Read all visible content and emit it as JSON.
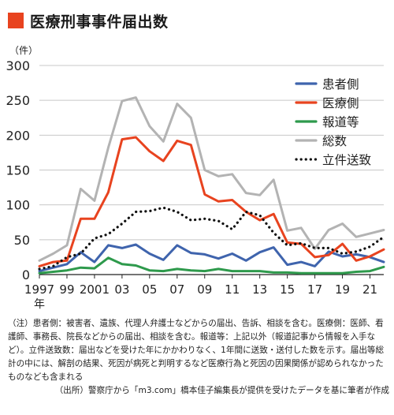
{
  "title": "医療刑事事件届出数",
  "chart_data": {
    "type": "line",
    "ylabel": "（件）",
    "ylim": [
      0,
      300
    ],
    "yticks": [
      0,
      50,
      100,
      150,
      200,
      250,
      300
    ],
    "xlim": [
      1997,
      2022
    ],
    "xticks": [
      {
        "x": 1997,
        "label": "1997"
      },
      {
        "x": 1999,
        "label": "99"
      },
      {
        "x": 2001,
        "label": "2001"
      },
      {
        "x": 2003,
        "label": "03"
      },
      {
        "x": 2005,
        "label": "05"
      },
      {
        "x": 2007,
        "label": "07"
      },
      {
        "x": 2009,
        "label": "09"
      },
      {
        "x": 2011,
        "label": "11"
      },
      {
        "x": 2013,
        "label": "13"
      },
      {
        "x": 2015,
        "label": "15"
      },
      {
        "x": 2017,
        "label": "17"
      },
      {
        "x": 2019,
        "label": "19"
      },
      {
        "x": 2021,
        "label": "21"
      }
    ],
    "xunit": "年",
    "grid": "horizontal",
    "legend_position": "top-right",
    "x": [
      1997,
      1998,
      1999,
      2000,
      2001,
      2002,
      2003,
      2004,
      2005,
      2006,
      2007,
      2008,
      2009,
      2010,
      2011,
      2012,
      2013,
      2014,
      2015,
      2016,
      2017,
      2018,
      2019,
      2020,
      2021,
      2022
    ],
    "series": [
      {
        "name": "患者側",
        "color": "#3f64ad",
        "style": "solid",
        "values": [
          5,
          10,
          15,
          32,
          18,
          42,
          38,
          43,
          30,
          21,
          42,
          31,
          29,
          23,
          30,
          20,
          32,
          39,
          14,
          18,
          12,
          33,
          26,
          29,
          25,
          18
        ]
      },
      {
        "name": "医療側",
        "color": "#e8431f",
        "style": "solid",
        "values": [
          12,
          18,
          20,
          80,
          80,
          118,
          194,
          197,
          177,
          163,
          192,
          186,
          115,
          105,
          107,
          90,
          78,
          87,
          46,
          44,
          25,
          28,
          44,
          20,
          26,
          36
        ]
      },
      {
        "name": "報道等",
        "color": "#2e9a4c",
        "style": "solid",
        "values": [
          2,
          4,
          6,
          10,
          9,
          24,
          15,
          13,
          6,
          5,
          8,
          6,
          5,
          8,
          5,
          5,
          5,
          3,
          3,
          2,
          2,
          2,
          2,
          4,
          5,
          11
        ]
      },
      {
        "name": "総数",
        "color": "#b3b3b3",
        "style": "solid",
        "values": [
          20,
          30,
          42,
          123,
          106,
          182,
          249,
          254,
          213,
          191,
          245,
          225,
          150,
          141,
          144,
          117,
          114,
          136,
          63,
          67,
          37,
          64,
          73,
          54,
          59,
          64
        ]
      },
      {
        "name": "立件送致",
        "color": "#111111",
        "style": "dotted",
        "values": [
          8,
          12,
          25,
          30,
          52,
          58,
          73,
          90,
          91,
          96,
          90,
          78,
          80,
          77,
          65,
          90,
          85,
          60,
          42,
          45,
          38,
          38,
          30,
          33,
          40,
          54
        ]
      }
    ]
  },
  "notes": {
    "body": "（注）患者側：被害者、遺族、代理人弁護士などからの届出、告訴、相談を含む。医療側：医師、看護師、事務長、院長などからの届出、相談を含む。報道等：上記以外（報道記事から情報を入手など）。立件送致数：届出などを受けた年にかかわりなく、1年間に送致・送付した数を示す。届出等総計の中には、解剖の結果、死因が病死と判明するなど医療行為と死因の因果関係が認められなかったものなども含まれる",
    "source": "（出所）警察庁から「m3.com」橋本佳子編集長が提供を受けたデータを基に筆者が作成"
  }
}
